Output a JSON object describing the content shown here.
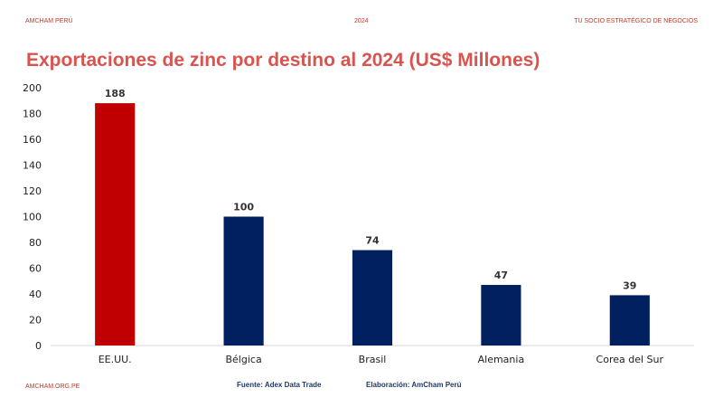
{
  "header": {
    "left": "AMCHAM PERÚ",
    "center": "2024",
    "right": "TU SOCIO ESTRATÉGICO  DE NEGOCIOS"
  },
  "footer": {
    "left": "AMCHAM.ORG.PE",
    "source": "Fuente: Adex Data Trade",
    "elaboration": "Elaboración: AmCham  Perú"
  },
  "colors": {
    "highlight": "#c00000",
    "bar": "#002060",
    "title": "#d9534f",
    "header": "#c0392b"
  },
  "chart_data": {
    "type": "bar",
    "title": "Exportaciones de zinc por destino al 2024 (US$ Millones)",
    "categories": [
      "EE.UU.",
      "Bélgica",
      "Brasil",
      "Alemania",
      "Corea del Sur"
    ],
    "values": [
      188,
      100,
      74,
      47,
      39
    ],
    "data_labels": [
      "188",
      "100",
      "74",
      "47",
      "39"
    ],
    "highlight_index": 0,
    "ylim": [
      0,
      200
    ],
    "yticks": [
      0,
      20,
      40,
      60,
      80,
      100,
      120,
      140,
      160,
      180,
      200
    ],
    "grid": false,
    "legend": "none",
    "xlabel": "",
    "ylabel": ""
  }
}
